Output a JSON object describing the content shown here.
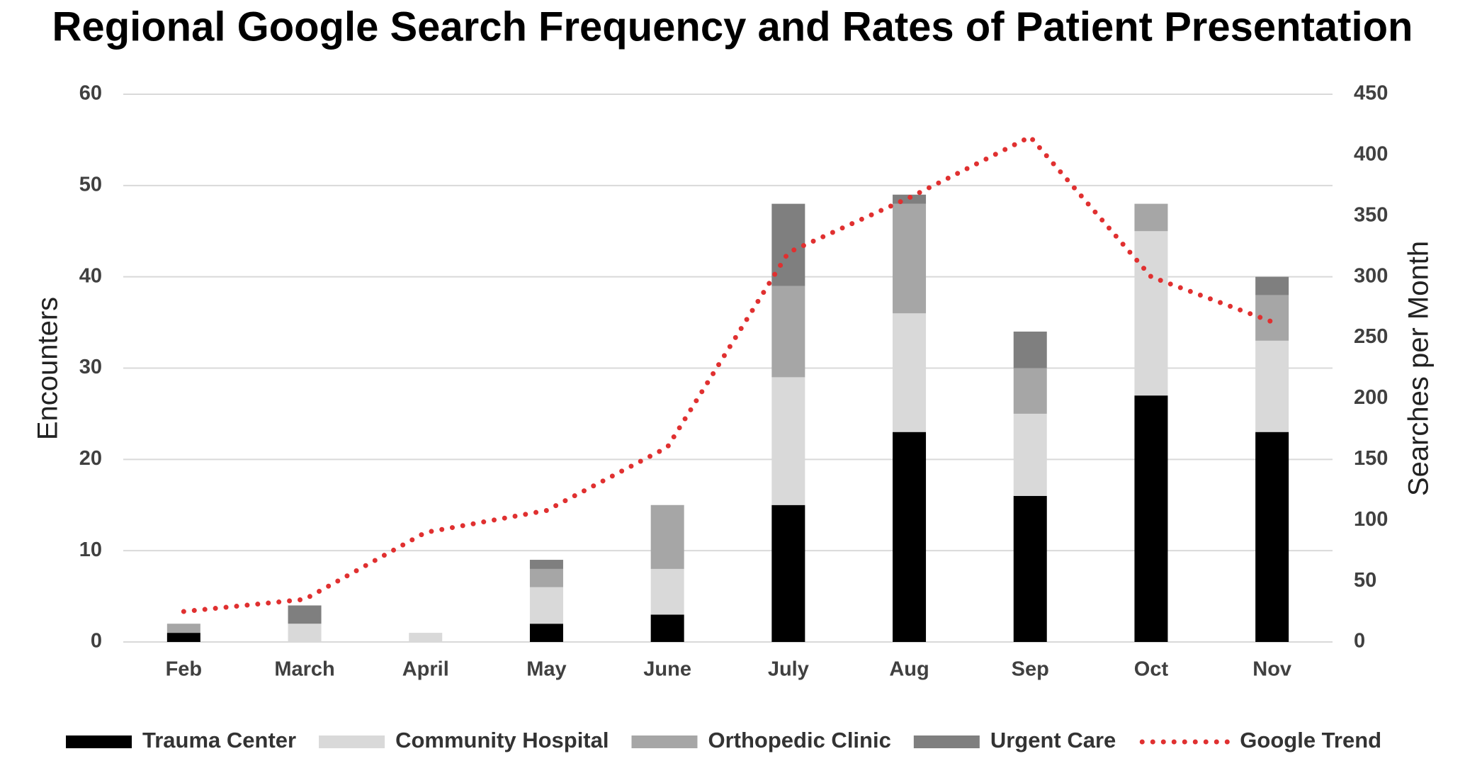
{
  "chart_data": {
    "type": "bar",
    "stacked": true,
    "title": "Regional Google Search Frequency and Rates of Patient Presentation",
    "y_label": "Encounters",
    "y2_label": "Searches per Month",
    "categories": [
      "Feb",
      "March",
      "April",
      "May",
      "June",
      "July",
      "Aug",
      "Sep",
      "Oct",
      "Nov"
    ],
    "series": [
      {
        "name": "Trauma Center",
        "color": "#000000",
        "values": [
          1,
          0,
          0,
          2,
          3,
          15,
          23,
          16,
          27,
          23
        ]
      },
      {
        "name": "Community Hospital",
        "color": "#d9d9d9",
        "values": [
          0,
          2,
          1,
          4,
          5,
          14,
          13,
          9,
          18,
          10
        ]
      },
      {
        "name": "Orthopedic Clinic",
        "color": "#a6a6a6",
        "values": [
          1,
          0,
          0,
          2,
          7,
          10,
          12,
          5,
          3,
          5
        ]
      },
      {
        "name": "Urgent Care",
        "color": "#7f7f7f",
        "values": [
          0,
          2,
          0,
          1,
          0,
          9,
          1,
          4,
          0,
          2
        ]
      },
      {
        "name": "Google Trend",
        "color": "#e03030",
        "type": "line",
        "axis": "y2",
        "values": [
          25,
          35,
          90,
          108,
          160,
          320,
          365,
          415,
          300,
          263
        ]
      }
    ],
    "ylim": [
      0,
      60
    ],
    "yticks": [
      0,
      10,
      20,
      30,
      40,
      50,
      60
    ],
    "y2lim": [
      0,
      450
    ],
    "y2ticks": [
      0,
      50,
      100,
      150,
      200,
      250,
      300,
      350,
      400,
      450
    ],
    "grid": true,
    "legend": "bottom"
  }
}
